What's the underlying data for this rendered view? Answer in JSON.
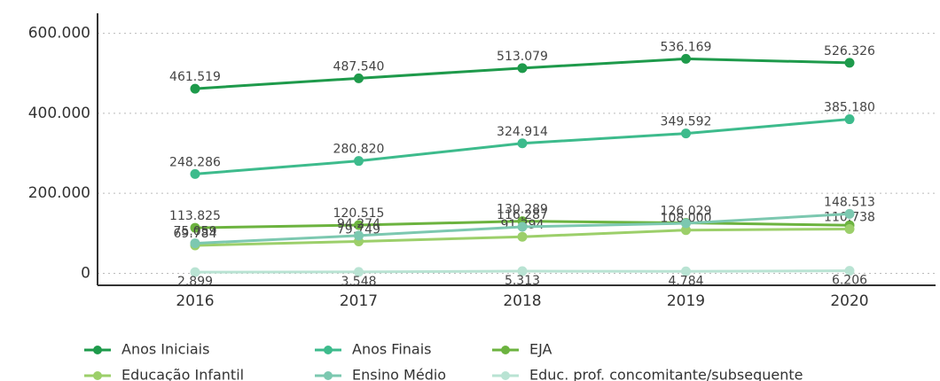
{
  "chart_data": {
    "type": "line",
    "x": [
      "2016",
      "2017",
      "2018",
      "2019",
      "2020"
    ],
    "ylim": [
      -30000,
      650000
    ],
    "yticks": [
      0,
      {
        "value": 200000,
        "label": "200.000"
      },
      {
        "value": 400000,
        "label": "400.000"
      },
      {
        "value": 600000,
        "label": "600.000"
      }
    ],
    "grid": true,
    "series": [
      {
        "name": "Anos Iniciais",
        "color": "#1e9a4b",
        "values": [
          461519,
          487540,
          513079,
          536169,
          526326
        ],
        "value_labels": [
          "461.519",
          "487.540",
          "513.079",
          "536.169",
          "526.326"
        ]
      },
      {
        "name": "Anos Finais",
        "color": "#3dbb8c",
        "values": [
          248286,
          280820,
          324914,
          349592,
          385180
        ],
        "value_labels": [
          "248.286",
          "280.820",
          "324.914",
          "349.592",
          "385.180"
        ]
      },
      {
        "name": "EJA",
        "color": "#6cb33f",
        "values": [
          113825,
          120515,
          130289,
          126029,
          120000
        ],
        "value_labels": [
          "113.825",
          "120.515",
          "130.289",
          "126.029",
          null
        ]
      },
      {
        "name": "Educação Infantil",
        "color": "#9ccf6a",
        "values": [
          69784,
          79749,
          91394,
          108000,
          110738
        ],
        "value_labels": [
          "69.784",
          "79.749",
          "91.394",
          "108.000",
          "110.738"
        ]
      },
      {
        "name": "Ensino Médio",
        "color": "#7cc8b0",
        "values": [
          75059,
          94274,
          116287,
          125000,
          148513
        ],
        "value_labels": [
          "75.059",
          "94.274",
          "116.287",
          null,
          "148.513"
        ]
      },
      {
        "name": "Educ. prof. concomitante/subsequente",
        "color": "#b9e3d3",
        "values": [
          2899,
          3548,
          5313,
          4784,
          6206
        ],
        "value_labels": [
          "2.899",
          "3.548",
          "5.313",
          "4.784",
          "6.206"
        ]
      }
    ]
  }
}
